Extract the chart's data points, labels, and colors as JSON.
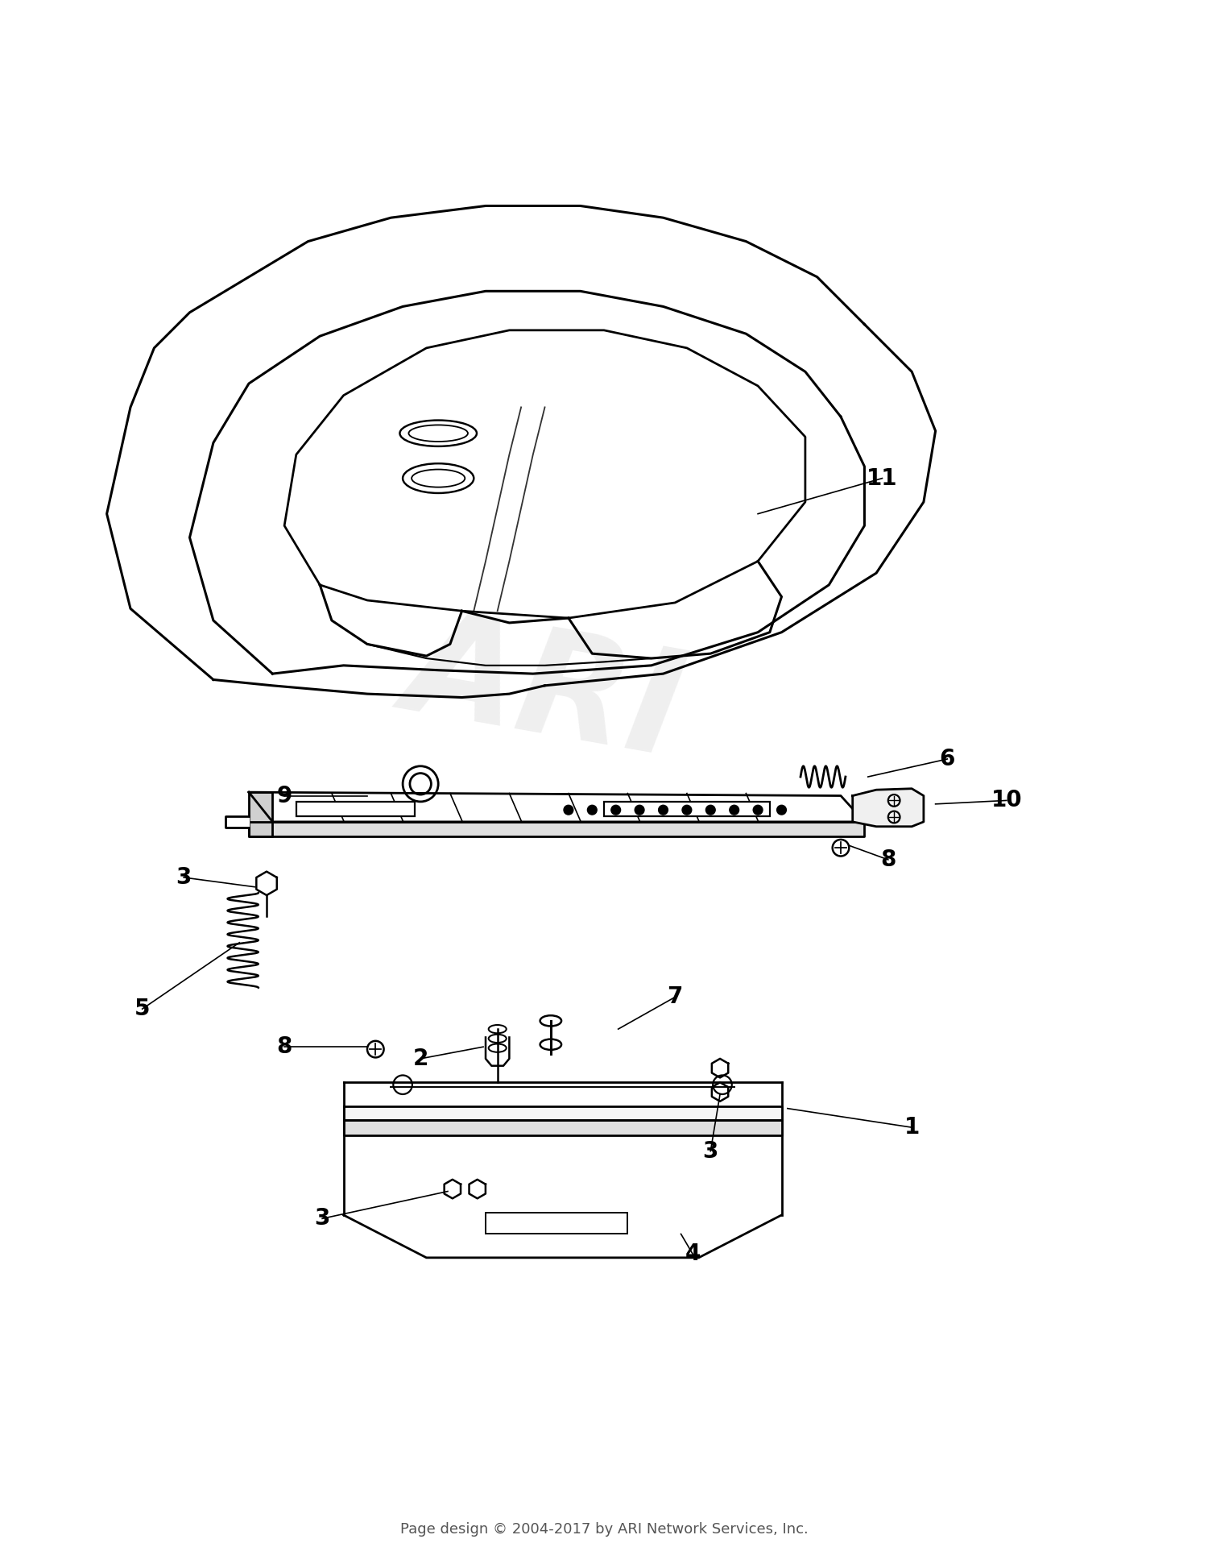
{
  "footer": "Page design © 2004-2017 by ARI Network Services, Inc.",
  "watermark": "ARI",
  "background_color": "#ffffff",
  "line_color": "#000000",
  "watermark_color": "#cccccc"
}
